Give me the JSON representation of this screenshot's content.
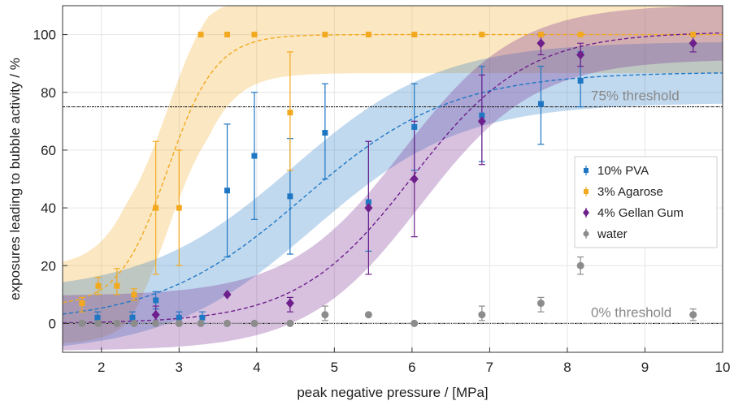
{
  "chart_data": {
    "type": "scatter",
    "xlabel": "peak negative pressure / [MPa]",
    "ylabel": "exposures leading to bubble activity / %",
    "xlim": [
      1.5,
      10
    ],
    "ylim": [
      -10,
      110
    ],
    "xticks": [
      "2",
      "3",
      "4",
      "5",
      "6",
      "7",
      "8",
      "9",
      "10"
    ],
    "yticks": [
      "0",
      "20",
      "40",
      "60",
      "80",
      "100"
    ],
    "grid": true,
    "legend_position": "right",
    "thresholds": [
      {
        "label": "75% threshold",
        "y": 75
      },
      {
        "label": "0% threshold",
        "y": 0
      }
    ],
    "series": [
      {
        "name": "10% PVA",
        "color": "#1f77c4",
        "marker": "square",
        "points": [
          {
            "x": 1.95,
            "y": 2,
            "lo": 0,
            "hi": 4
          },
          {
            "x": 2.4,
            "y": 2,
            "lo": 0,
            "hi": 4
          },
          {
            "x": 2.7,
            "y": 8,
            "lo": 5,
            "hi": 11
          },
          {
            "x": 3.0,
            "y": 2,
            "lo": 0,
            "hi": 4
          },
          {
            "x": 3.3,
            "y": 2,
            "lo": 0,
            "hi": 4
          },
          {
            "x": 3.62,
            "y": 46,
            "lo": 23,
            "hi": 69
          },
          {
            "x": 3.97,
            "y": 58,
            "lo": 36,
            "hi": 80
          },
          {
            "x": 4.43,
            "y": 44,
            "lo": 24,
            "hi": 64
          },
          {
            "x": 4.88,
            "y": 66,
            "lo": 50,
            "hi": 83
          },
          {
            "x": 5.44,
            "y": 42,
            "lo": 25,
            "hi": 63
          },
          {
            "x": 6.03,
            "y": 68,
            "lo": 53,
            "hi": 83
          },
          {
            "x": 6.9,
            "y": 72,
            "lo": 56,
            "hi": 89
          },
          {
            "x": 7.66,
            "y": 76,
            "lo": 62,
            "hi": 89
          },
          {
            "x": 8.17,
            "y": 84,
            "lo": 75,
            "hi": 94
          }
        ]
      },
      {
        "name": "3% Agarose",
        "color": "#f2a91f",
        "marker": "square",
        "points": [
          {
            "x": 1.75,
            "y": 7,
            "lo": 4,
            "hi": 9
          },
          {
            "x": 1.96,
            "y": 13,
            "lo": 10,
            "hi": 16
          },
          {
            "x": 2.2,
            "y": 13,
            "lo": 10,
            "hi": 19
          },
          {
            "x": 2.42,
            "y": 10,
            "lo": 8,
            "hi": 12
          },
          {
            "x": 2.7,
            "y": 40,
            "lo": 17,
            "hi": 63
          },
          {
            "x": 3.0,
            "y": 40,
            "lo": 20,
            "hi": 60
          },
          {
            "x": 3.28,
            "y": 100,
            "lo": 100,
            "hi": 100
          },
          {
            "x": 3.62,
            "y": 100,
            "lo": 100,
            "hi": 100
          },
          {
            "x": 3.97,
            "y": 100,
            "lo": 100,
            "hi": 100
          },
          {
            "x": 4.43,
            "y": 73,
            "lo": 53,
            "hi": 94
          },
          {
            "x": 4.88,
            "y": 100,
            "lo": 100,
            "hi": 100
          },
          {
            "x": 5.44,
            "y": 100,
            "lo": 100,
            "hi": 100
          },
          {
            "x": 6.03,
            "y": 100,
            "lo": 100,
            "hi": 100
          },
          {
            "x": 6.9,
            "y": 100,
            "lo": 100,
            "hi": 100
          },
          {
            "x": 7.66,
            "y": 100,
            "lo": 100,
            "hi": 100
          },
          {
            "x": 8.17,
            "y": 100,
            "lo": 100,
            "hi": 100
          },
          {
            "x": 9.62,
            "y": 100,
            "lo": 100,
            "hi": 100
          }
        ]
      },
      {
        "name": "4% Gellan Gum",
        "color": "#6e1f8c",
        "marker": "diamond",
        "points": [
          {
            "x": 2.7,
            "y": 3,
            "lo": 0,
            "hi": 6
          },
          {
            "x": 3.62,
            "y": 10,
            "lo": 10,
            "hi": 10
          },
          {
            "x": 4.43,
            "y": 7,
            "lo": 4,
            "hi": 9
          },
          {
            "x": 5.44,
            "y": 40,
            "lo": 17,
            "hi": 63
          },
          {
            "x": 6.03,
            "y": 50,
            "lo": 30,
            "hi": 70
          },
          {
            "x": 6.9,
            "y": 70,
            "lo": 55,
            "hi": 86
          },
          {
            "x": 7.66,
            "y": 97,
            "lo": 93,
            "hi": 100
          },
          {
            "x": 8.17,
            "y": 93,
            "lo": 89,
            "hi": 97
          },
          {
            "x": 9.62,
            "y": 97,
            "lo": 94,
            "hi": 100
          }
        ]
      },
      {
        "name": "water",
        "color": "#8c8c8c",
        "marker": "circle",
        "points": [
          {
            "x": 1.75,
            "y": 0,
            "lo": 0,
            "hi": 0
          },
          {
            "x": 1.96,
            "y": 0,
            "lo": 0,
            "hi": 0
          },
          {
            "x": 2.2,
            "y": 0,
            "lo": 0,
            "hi": 0
          },
          {
            "x": 2.42,
            "y": 0,
            "lo": 0,
            "hi": 0
          },
          {
            "x": 2.7,
            "y": 0,
            "lo": 0,
            "hi": 0
          },
          {
            "x": 3.0,
            "y": 0,
            "lo": 0,
            "hi": 0
          },
          {
            "x": 3.28,
            "y": 0,
            "lo": 0,
            "hi": 0
          },
          {
            "x": 3.62,
            "y": 0,
            "lo": 0,
            "hi": 0
          },
          {
            "x": 3.97,
            "y": 0,
            "lo": 0,
            "hi": 0
          },
          {
            "x": 4.43,
            "y": 0,
            "lo": 0,
            "hi": 0
          },
          {
            "x": 4.88,
            "y": 3,
            "lo": 1,
            "hi": 6
          },
          {
            "x": 5.44,
            "y": 3,
            "lo": 3,
            "hi": 3
          },
          {
            "x": 6.03,
            "y": 0,
            "lo": 0,
            "hi": 0
          },
          {
            "x": 6.9,
            "y": 3,
            "lo": 1,
            "hi": 6
          },
          {
            "x": 7.66,
            "y": 7,
            "lo": 4,
            "hi": 9
          },
          {
            "x": 8.17,
            "y": 20,
            "lo": 17,
            "hi": 23
          },
          {
            "x": 9.62,
            "y": 3,
            "lo": 1,
            "hi": 5
          }
        ]
      }
    ],
    "fits": [
      {
        "series": "3% Agarose",
        "type": "sigmoid",
        "lo": 6,
        "hi": 100,
        "x0": 2.85,
        "k": 3.2
      },
      {
        "series": "10% PVA",
        "type": "sigmoid",
        "lo": 0,
        "hi": 87,
        "x0": 4.6,
        "k": 1.05
      },
      {
        "series": "4% Gellan Gum",
        "type": "sigmoid",
        "lo": 0,
        "hi": 101,
        "x0": 6.0,
        "k": 1.35
      },
      {
        "series": "water",
        "type": "flat",
        "y": 0
      }
    ]
  }
}
